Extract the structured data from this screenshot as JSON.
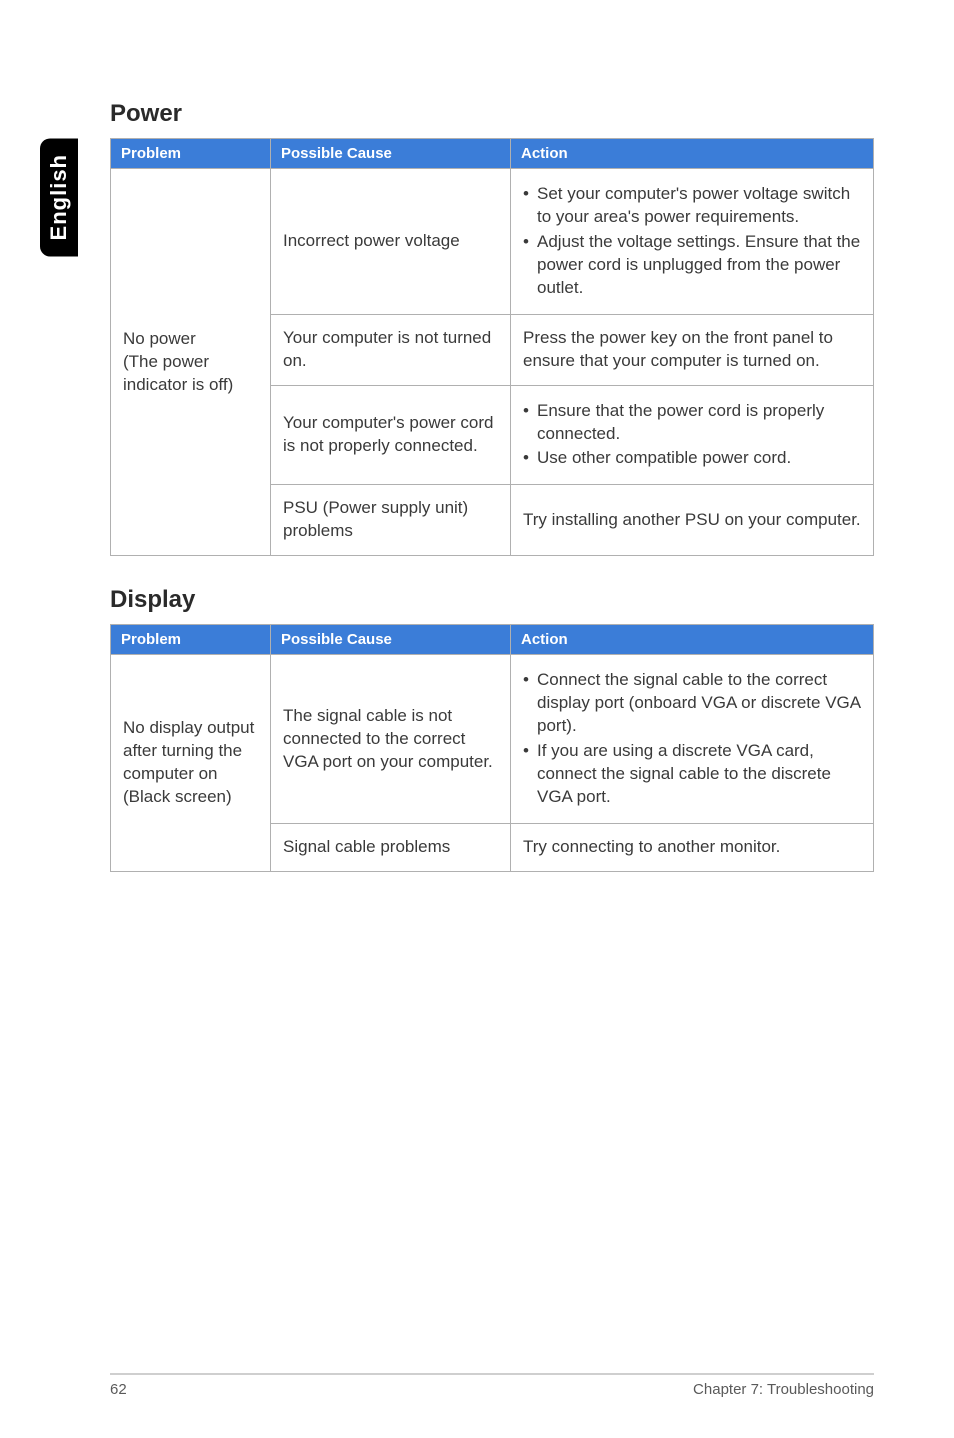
{
  "side_tab": "English",
  "sections": {
    "power": {
      "title": "Power",
      "headers": {
        "problem": "Problem",
        "cause": "Possible Cause",
        "action": "Action"
      },
      "problem_cell": "No power\n(The power indicator is off)",
      "rows": {
        "r0": {
          "cause": "Incorrect power voltage",
          "actions": {
            "a0": "Set your computer's power voltage switch to your area's power requirements.",
            "a1": "Adjust the voltage settings. Ensure that the power cord is unplugged from the power outlet."
          }
        },
        "r1": {
          "cause": "Your computer is not turned on.",
          "action": "Press the power key on the front panel to ensure that your computer is turned on."
        },
        "r2": {
          "cause": "Your computer's power cord is not properly connected.",
          "actions": {
            "a0": "Ensure that the power cord is properly connected.",
            "a1": "Use other compatible power cord."
          }
        },
        "r3": {
          "cause": "PSU (Power supply unit) problems",
          "action": "Try installing another PSU on your computer."
        }
      }
    },
    "display": {
      "title": "Display",
      "headers": {
        "problem": "Problem",
        "cause": "Possible Cause",
        "action": "Action"
      },
      "problem_cell": "No display output after turning the computer on (Black screen)",
      "rows": {
        "r0": {
          "cause": "The signal cable is not connected to the correct VGA port on your computer.",
          "actions": {
            "a0": "Connect the signal cable to the correct display port (onboard VGA or discrete VGA port).",
            "a1": "If you are using a discrete VGA card, connect the signal cable to the discrete VGA port."
          }
        },
        "r1": {
          "cause": "Signal cable problems",
          "action": "Try connecting to another monitor."
        }
      }
    }
  },
  "footer": {
    "page": "62",
    "chapter": "Chapter 7: Troubleshooting"
  },
  "style": {
    "header_bg": "#3b7dd8",
    "header_fg": "#ffffff",
    "cell_border": "#b0b0b0",
    "body_text": "#3a3a3a",
    "title_fontsize": 24,
    "body_fontsize": 17,
    "header_fontsize": 15
  }
}
